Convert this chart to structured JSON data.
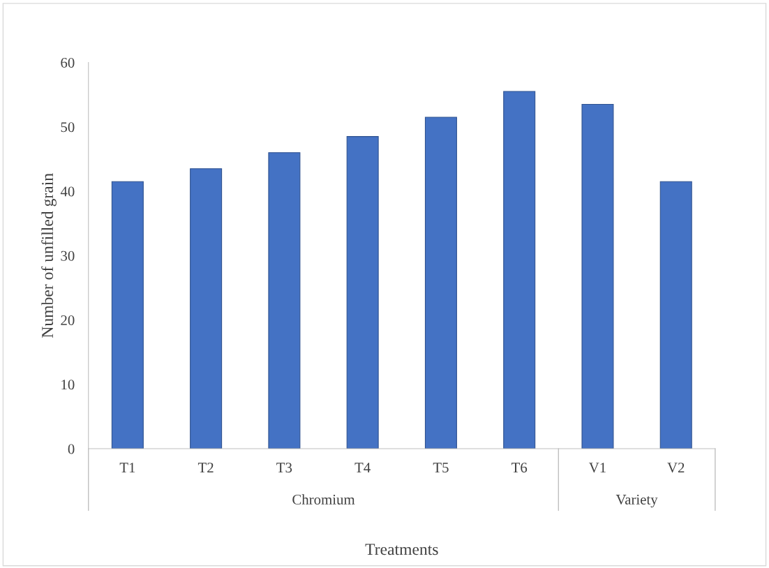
{
  "chart_data": {
    "type": "bar",
    "xlabel": "Treatments",
    "ylabel": "Number of unfilled grain",
    "categories": [
      "T1",
      "T2",
      "T3",
      "T4",
      "T5",
      "T6",
      "V1",
      "V2"
    ],
    "values": [
      41.5,
      43.5,
      46,
      48.5,
      51.5,
      55.5,
      53.5,
      41.5
    ],
    "color": "#4472c4",
    "ylim": [
      0,
      60
    ],
    "yticks": [
      0,
      10,
      20,
      30,
      40,
      50,
      60
    ],
    "grid": false,
    "annotations": [
      "Chromium",
      "Variety"
    ]
  }
}
